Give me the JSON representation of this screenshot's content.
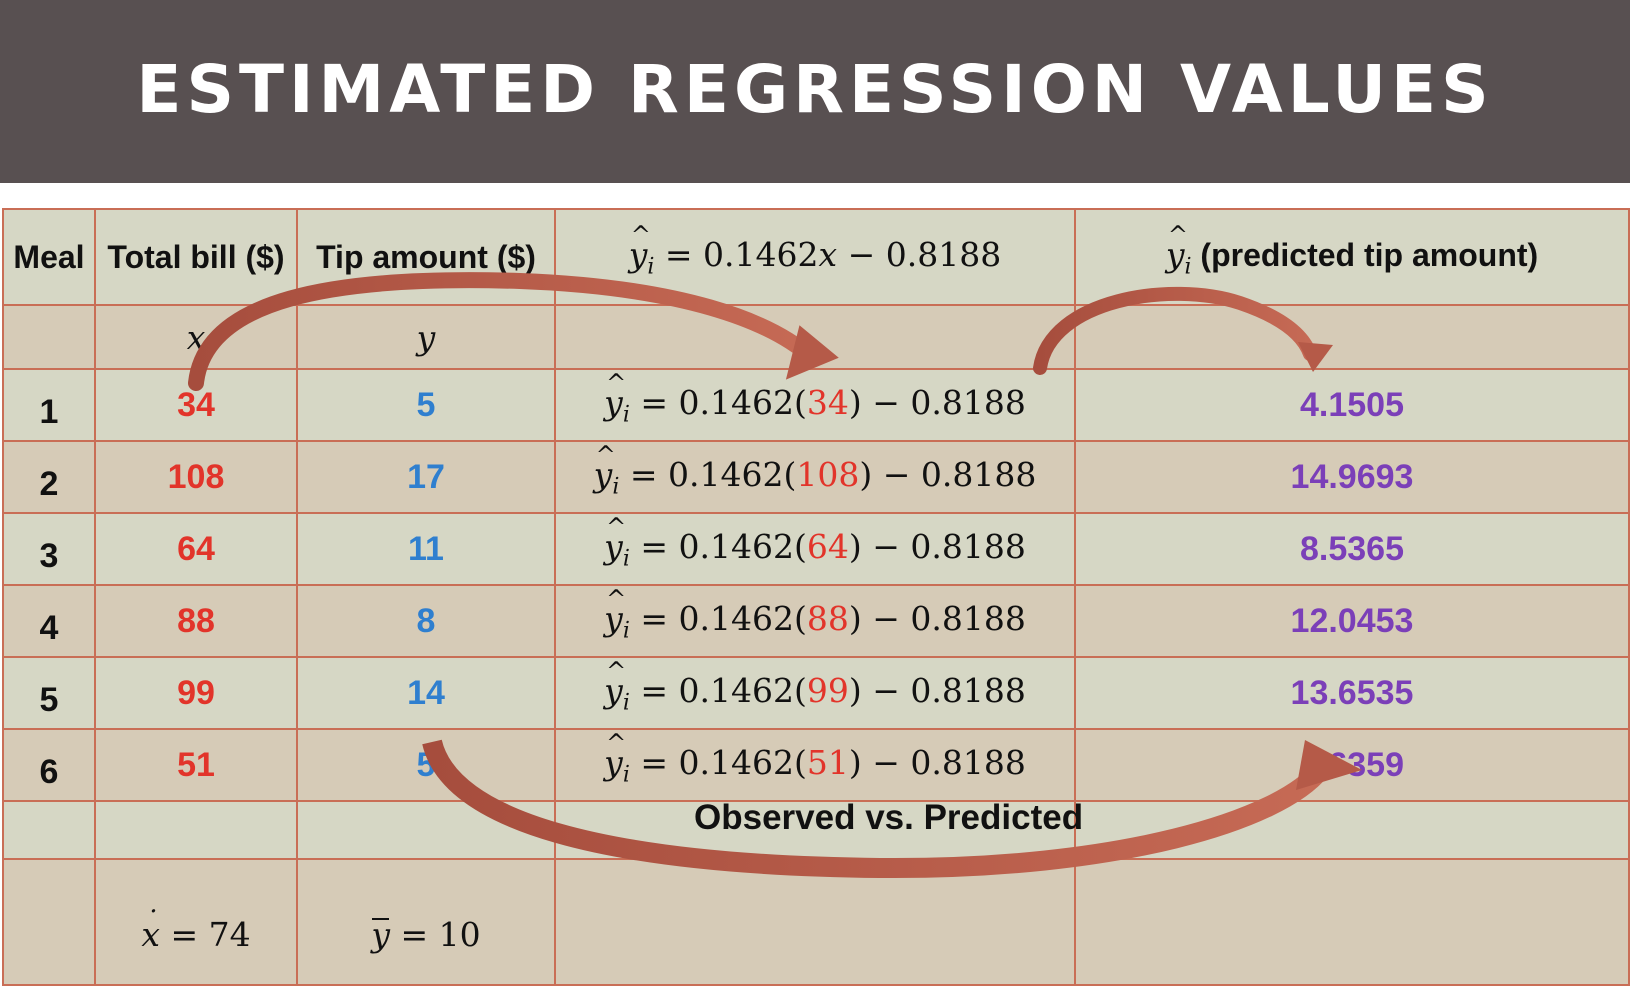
{
  "slide": {
    "title": "ESTIMATED REGRESSION VALUES"
  },
  "table": {
    "headers": {
      "meal": "Meal",
      "total_bill": "Total bill ($)",
      "tip_amount": "Tip amount ($)",
      "equation": {
        "lhs_var": "y",
        "lhs_sub": "i",
        "rhs_prefix": " = 0.1462",
        "rhs_var": "x",
        "rhs_suffix": " − 0.8188"
      },
      "predicted": {
        "var": "y",
        "sub": "i",
        "label": " (predicted tip amount)"
      }
    },
    "symbols": {
      "x": "x",
      "y": "y"
    },
    "rows": [
      {
        "meal": "1",
        "x": "34",
        "y": "5",
        "eq_prefix": " = 0.1462(",
        "eq_x": "34",
        "eq_suffix": ") − 0.8188",
        "predicted": "4.1505"
      },
      {
        "meal": "2",
        "x": "108",
        "y": "17",
        "eq_prefix": " = 0.1462(",
        "eq_x": "108",
        "eq_suffix": ") − 0.8188",
        "predicted": "14.9693"
      },
      {
        "meal": "3",
        "x": "64",
        "y": "11",
        "eq_prefix": " = 0.1462(",
        "eq_x": "64",
        "eq_suffix": ") − 0.8188",
        "predicted": "8.5365"
      },
      {
        "meal": "4",
        "x": "88",
        "y": "8",
        "eq_prefix": " = 0.1462(",
        "eq_x": "88",
        "eq_suffix": ") − 0.8188",
        "predicted": "12.0453"
      },
      {
        "meal": "5",
        "x": "99",
        "y": "14",
        "eq_prefix": " = 0.1462(",
        "eq_x": "99",
        "eq_suffix": ") − 0.8188",
        "predicted": "13.6535"
      },
      {
        "meal": "6",
        "x": "51",
        "y": "5",
        "eq_prefix": " = 0.1462(",
        "eq_x": "51",
        "eq_suffix": ") − 0.8188",
        "predicted": "6.6359"
      }
    ],
    "summary": {
      "x_mean_var": "x",
      "x_mean_value": " = 74",
      "y_mean_var": "y",
      "y_mean_value": " = 10"
    }
  },
  "annotation": {
    "caption": "Observed vs. Predicted"
  },
  "colors": {
    "title_bar": "#585051",
    "grid_line": "#c96e56",
    "band_light": "#d6d7c5",
    "band_dark": "#d6cbb7",
    "x_values": "#e2342a",
    "y_values": "#2f7fcf",
    "predicted_values": "#7b3fb8",
    "arrow": "#b55a48"
  }
}
